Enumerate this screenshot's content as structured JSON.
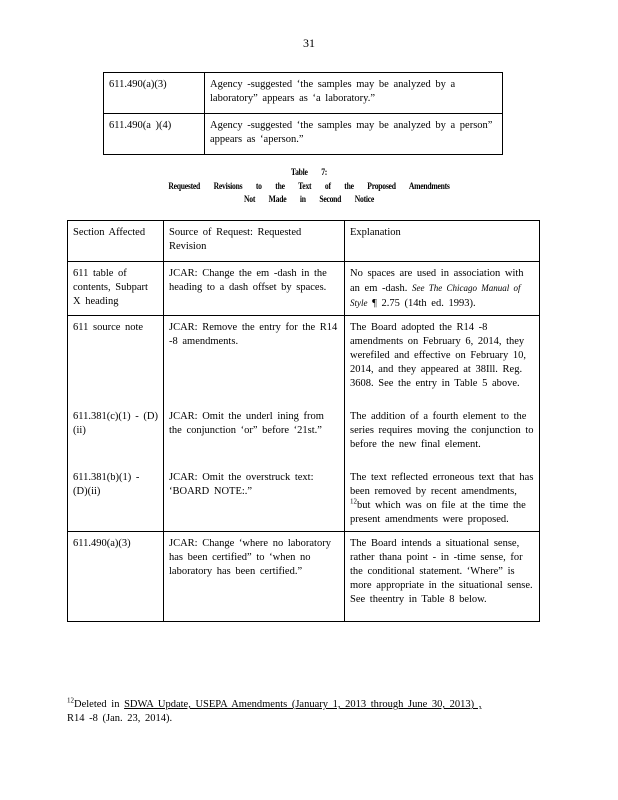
{
  "page_number": "31",
  "top_table": [
    {
      "section": "611.490(a)(3)",
      "text": "Agency -suggested ‘the samples may be analyzed by a laboratory” appears as ‘a laboratory.”"
    },
    {
      "section": "611.490(a )(4)",
      "text": "Agency -suggested ‘the samples may be analyzed by a person” appears as ‘aperson.”"
    }
  ],
  "caption": {
    "line1": "Table 7:",
    "line2": "Requested Revisions to the Text of the Proposed Amendments",
    "line3": "Not Made in Second Notice"
  },
  "main_table": {
    "headers": [
      "Section Affected",
      "Source of Request: Requested Revision",
      "Explanation"
    ],
    "rows": [
      {
        "section": "611 table of contents, Subpart X heading",
        "request": "JCAR: Change the em -dash in the heading to a dash offset by spaces.",
        "explanation_pre": "No spaces are used in association with an em -dash.",
        "explanation_italic": "See The Chicago Manual of Style",
        "explanation_post": "¶ 2.75 (14th ed. 1993)."
      },
      {
        "section": "611 source note",
        "request": "JCAR: Remove the entry for the R14 -8 amendments.",
        "explanation": "The Board adopted the R14 -8 amendments on February 6, 2014, they werefiled and effective on February 10, 2014, and they appeared at 38Ill. Reg. 3608. See the entry in Table 5 above."
      },
      {
        "section": "611.381(c)(1) - (D)(ii)",
        "request": "JCAR: Omit the underl ining from the conjunction ‘or” before ‘21st.”",
        "explanation": "The addition of a fourth element to the series requires moving the conjunction to before the new final element."
      },
      {
        "section": "611.381(b)(1) - (D)(ii)",
        "request": "JCAR: Omit the overstruck text: ‘BOARD NOTE:.”",
        "explanation_pre": "The text reflected erroneous text that has been removed by recent amendments,",
        "footnote_ref": "12",
        "explanation_post": "but which was on file at the time the present amendments were proposed."
      },
      {
        "section": "611.490(a)(3)",
        "request": "JCAR: Change ‘where no laboratory has been certified” to ‘when no laboratory has been certified.”",
        "explanation": "The Board intends a situational sense, rather thana point - in -time sense, for the conditional statement. ‘Where” is more appropriate in the situational sense. See theentry in Table 8 below."
      }
    ]
  },
  "footnote": {
    "number": "12",
    "text_pre": "Deleted in",
    "text_underlined": "SDWA Update, USEPA Amendments (January 1, 2013 through June 30, 2013) ,",
    "text_post": "R14 -8 (Jan. 23, 2014)."
  }
}
